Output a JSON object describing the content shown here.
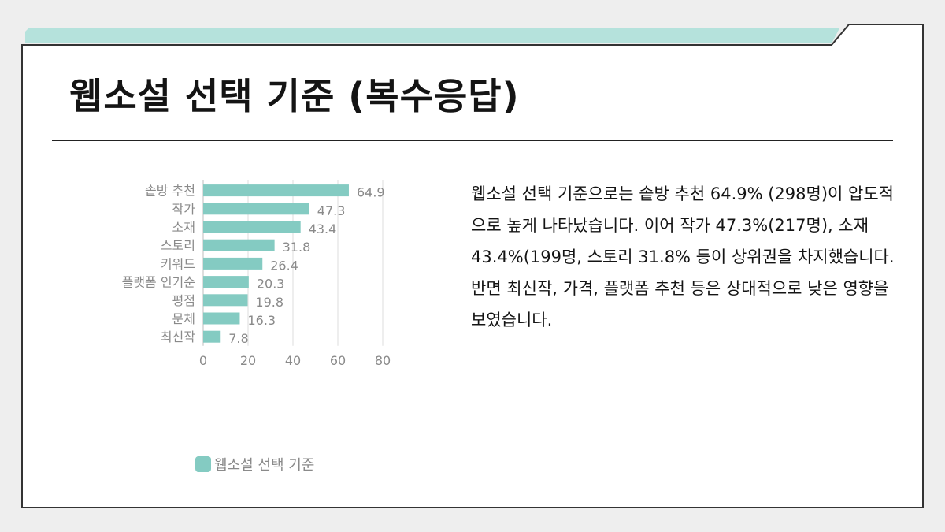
{
  "slide": {
    "title": "웹소설 선택 기준 (복수응답)",
    "body": "웹소설 선택 기준으로는 솥방 추천 64.9% (298명)이 압도적으로 높게 나타났습니다. 이어 작가 47.3%(217명), 소재 43.4%(199명, 스토리 31.8% 등이 상위권을 차지했습니다. 반면 최신작, 가격, 플랫폼 추천 등은 상대적으로 낮은 영향을 보였습니다."
  },
  "colors": {
    "bar": "#84cbc2",
    "accent_band": "#b5e2dc",
    "frame": "#333333"
  },
  "chart_data": {
    "type": "bar",
    "orientation": "horizontal",
    "categories": [
      "솥방 추천",
      "작가",
      "소재",
      "스토리",
      "키워드",
      "플랫폼 인기순",
      "평점",
      "문체",
      "최신작"
    ],
    "series": [
      {
        "name": "웹소설 선택 기준",
        "values": [
          64.9,
          47.3,
          43.4,
          31.8,
          26.4,
          20.3,
          19.8,
          16.3,
          7.8
        ]
      }
    ],
    "xlim": [
      0,
      80
    ],
    "xticks": [
      "0",
      "20",
      "40",
      "60",
      "80"
    ],
    "grid": true,
    "legend": "bottom"
  }
}
